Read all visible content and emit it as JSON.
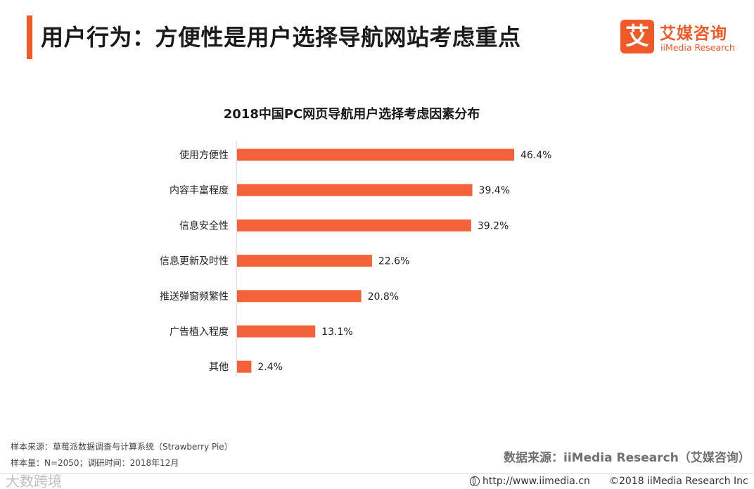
{
  "header": {
    "title": "用户行为：方便性是用户选择导航网站考虑重点"
  },
  "logo": {
    "mark": "艾",
    "name_cn": "艾媒咨询",
    "name_en": "iiMedia Research"
  },
  "colors": {
    "accent": "#f05a28",
    "bar": "#f4623a"
  },
  "chart_data": {
    "type": "bar",
    "orientation": "horizontal",
    "title": "2018中国PC网页导航用户选择考虑因素分布",
    "categories": [
      "使用方便性",
      "内容丰富程度",
      "信息安全性",
      "信息更新及时性",
      "推送弹窗频繁性",
      "广告植入程度",
      "其他"
    ],
    "values": [
      46.4,
      39.4,
      39.2,
      22.6,
      20.8,
      13.1,
      2.4
    ],
    "value_labels": [
      "46.4%",
      "39.4%",
      "39.2%",
      "22.6%",
      "20.8%",
      "13.1%",
      "2.4%"
    ],
    "unit": "%",
    "xlabel": "",
    "ylabel": "",
    "xlim": [
      0,
      46.4
    ],
    "grid": false,
    "legend": "none"
  },
  "notes": {
    "sample_source": "样本来源：草莓派数据调查与计算系统（Strawberry Pie）",
    "sample_size": "样本量：N=2050；调研时间：2018年12月"
  },
  "source": "数据来源：iiMedia Research（艾媒咨询）",
  "footer": {
    "watermark": "大数跨境",
    "url": "http://www.iimedia.cn",
    "copyright": "©2018  iiMedia Research  Inc"
  }
}
